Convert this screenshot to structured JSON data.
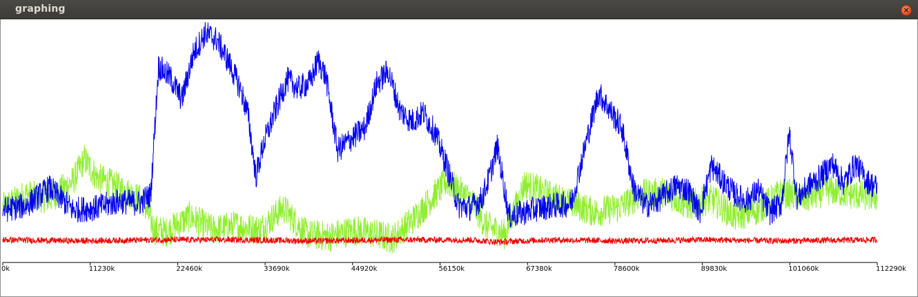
{
  "window": {
    "title": "graphing",
    "close_icon": "close-icon"
  },
  "colors": {
    "blue": "#0000ee",
    "green": "#90ee30",
    "red": "#ee0000",
    "axis": "#000000"
  },
  "chart_data": {
    "type": "line",
    "title": "",
    "xlabel": "",
    "ylabel": "",
    "xlim": [
      0,
      112290
    ],
    "ylim": [
      0,
      100
    ],
    "x_unit": "k",
    "tick_labels": [
      "0k",
      "11230k",
      "22460k",
      "33690k",
      "44920k",
      "56150k",
      "67380k",
      "78600k",
      "89830k",
      "101060k",
      "112290k"
    ],
    "grid": false,
    "legend": "none",
    "series": [
      {
        "color": "#0000ee",
        "x": [
          0,
          3000,
          6000,
          9000,
          12000,
          15000,
          17500,
          19000,
          20000,
          21500,
          23000,
          24500,
          26000,
          27500,
          29000,
          30500,
          31500,
          32500,
          33500,
          35000,
          36500,
          38000,
          39500,
          40500,
          41500,
          43000,
          45000,
          46500,
          48000,
          49500,
          51000,
          52500,
          54000,
          55500,
          57000,
          58500,
          60000,
          61500,
          62500,
          63500,
          65000,
          67000,
          69000,
          71000,
          73000,
          75000,
          76500,
          78000,
          79500,
          81000,
          82500,
          84000,
          85000,
          86500,
          88000,
          89500,
          91000,
          92500,
          94000,
          95500,
          97000,
          98500,
          100000,
          101000,
          102000,
          103500,
          105000,
          106500,
          108000,
          109500,
          111000,
          112290
        ],
        "y": [
          15,
          17,
          25,
          15,
          16,
          19,
          18,
          22,
          80,
          75,
          65,
          86,
          95,
          92,
          82,
          70,
          58,
          30,
          45,
          60,
          74,
          70,
          73,
          83,
          75,
          42,
          48,
          52,
          72,
          78,
          60,
          55,
          59,
          50,
          35,
          17,
          16,
          20,
          30,
          44,
          12,
          14,
          16,
          17,
          18,
          47,
          68,
          60,
          52,
          25,
          17,
          19,
          22,
          26,
          24,
          14,
          35,
          28,
          22,
          19,
          24,
          14,
          18,
          50,
          20,
          26,
          30,
          36,
          27,
          36,
          28,
          25
        ]
      },
      {
        "color": "#90ee30",
        "x": [
          0,
          3000,
          6000,
          9000,
          10500,
          12000,
          15000,
          18000,
          19500,
          21000,
          24000,
          27000,
          30000,
          33000,
          36000,
          39000,
          42000,
          45000,
          48000,
          50000,
          52500,
          54500,
          57000,
          60000,
          62000,
          64500,
          67000,
          70000,
          73000,
          76000,
          79000,
          82000,
          85000,
          88000,
          91000,
          94000,
          97000,
          100000,
          103000,
          106000,
          109000,
          112290
        ],
        "y": [
          16,
          22,
          20,
          28,
          38,
          30,
          25,
          19,
          6,
          5,
          12,
          6,
          8,
          6,
          16,
          4,
          3,
          6,
          4,
          2,
          10,
          18,
          28,
          20,
          8,
          4,
          27,
          22,
          18,
          14,
          16,
          22,
          23,
          17,
          20,
          12,
          15,
          23,
          20,
          24,
          22,
          21
        ]
      },
      {
        "color": "#ee0000",
        "x": [
          0,
          10000,
          20000,
          30000,
          40000,
          50000,
          60000,
          63500,
          70000,
          80000,
          90000,
          100000,
          112290
        ],
        "y": [
          1.5,
          1,
          1.5,
          1.5,
          1,
          1.5,
          1.5,
          0.5,
          1.5,
          1,
          1.5,
          1,
          1.5
        ]
      }
    ]
  }
}
